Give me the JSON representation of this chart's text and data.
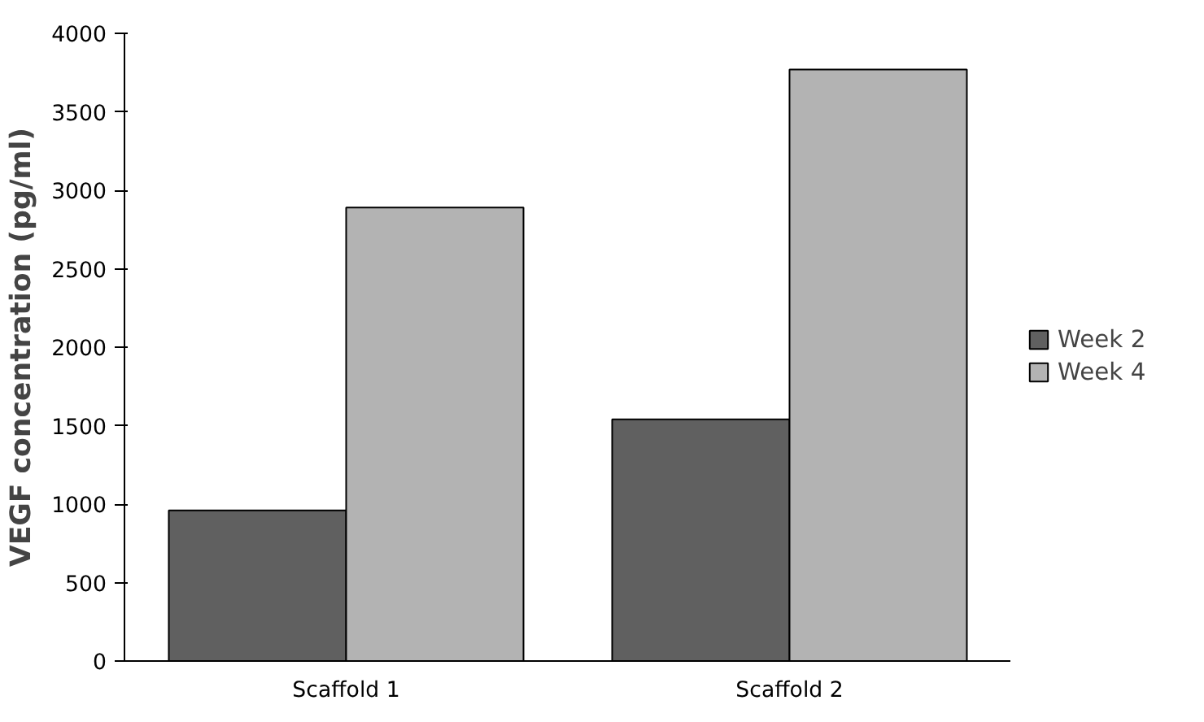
{
  "chart_data": {
    "type": "bar",
    "ylabel": "VEGF concentration (pg/ml)",
    "categories": [
      "Scaffold 1",
      "Scaffold 2"
    ],
    "series": [
      {
        "name": "Week 2",
        "color": "#606060",
        "values": [
          960,
          1540
        ]
      },
      {
        "name": "Week 4",
        "color": "#b3b3b3",
        "values": [
          2890,
          3770
        ]
      }
    ],
    "ylim": [
      0,
      4000
    ],
    "yticks": [
      0,
      500,
      1000,
      1500,
      2000,
      2500,
      3000,
      3500,
      4000
    ],
    "grid": false,
    "legend": "right"
  }
}
